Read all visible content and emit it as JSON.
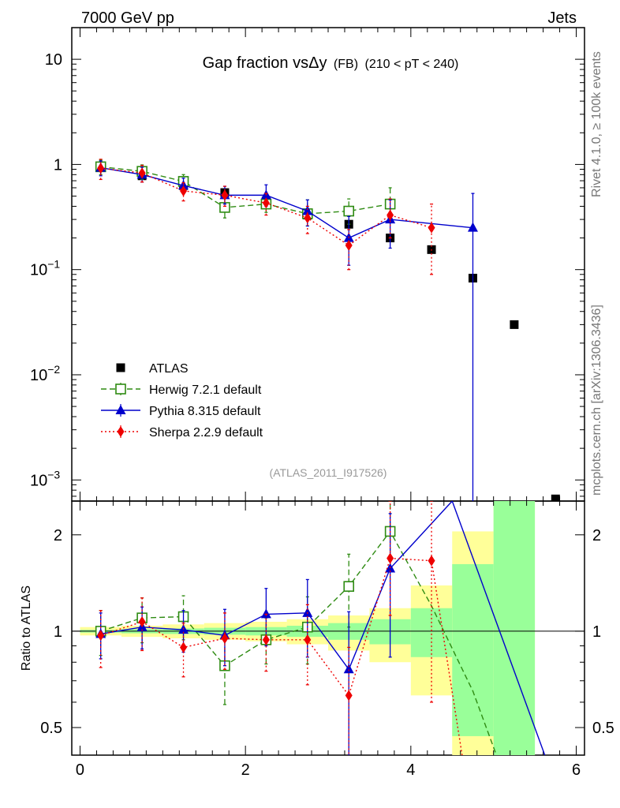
{
  "header": {
    "left": "7000 GeV pp",
    "right": "Jets"
  },
  "side_labels": {
    "top": "Rivet 4.1.0, ≥ 100k events",
    "bottom": "mcplots.cern.ch [arXiv:1306.3436]"
  },
  "chart_data": [
    {
      "type": "scatter",
      "panel": "main",
      "title_main": "Gap fraction vsΔy",
      "title_fb": "(FB)",
      "title_cut": "(210 < pT < 240)",
      "watermark": "(ATLAS_2011_I917526)",
      "yscale": "log",
      "xlim": [
        -0.1,
        6.1
      ],
      "ylim": [
        0.00063,
        20
      ],
      "yticks": [
        {
          "value": 10,
          "label": "10"
        },
        {
          "value": 1,
          "label": "1"
        },
        {
          "value": 0.1,
          "label": "10",
          "exp": "−1"
        },
        {
          "value": 0.01,
          "label": "10",
          "exp": "−2"
        },
        {
          "value": 0.001,
          "label": "10",
          "exp": "−3"
        }
      ],
      "series": [
        {
          "name": "ATLAS",
          "style": "data",
          "color": "#000000",
          "x": [
            0.25,
            0.75,
            1.25,
            1.75,
            2.25,
            2.75,
            3.25,
            3.75,
            4.25,
            4.75,
            5.25,
            5.75
          ],
          "y": [
            0.95,
            0.78,
            0.63,
            0.54,
            0.45,
            0.33,
            0.27,
            0.2,
            0.155,
            0.083,
            0.03,
            0.00066
          ]
        },
        {
          "name": "Herwig 7.2.1 default",
          "style": "herwig",
          "color": "#2e8b12",
          "x": [
            0.25,
            0.75,
            1.25,
            1.75,
            2.25,
            2.75,
            3.25,
            3.75
          ],
          "y": [
            0.95,
            0.86,
            0.69,
            0.39,
            0.42,
            0.34,
            0.36,
            0.42
          ],
          "ylo": [
            0.8,
            0.72,
            0.59,
            0.31,
            0.35,
            0.26,
            0.27,
            0.3
          ],
          "yhi": [
            1.1,
            0.99,
            0.8,
            0.5,
            0.52,
            0.46,
            0.47,
            0.6
          ]
        },
        {
          "name": "Pythia 8.315 default",
          "style": "pythia",
          "color": "#0000cc",
          "x": [
            0.25,
            0.75,
            1.25,
            1.75,
            2.25,
            2.75,
            3.25,
            3.75,
            4.75
          ],
          "y": [
            0.93,
            0.8,
            0.63,
            0.51,
            0.51,
            0.36,
            0.2,
            0.3,
            0.25
          ],
          "ylo": [
            0.78,
            0.68,
            0.54,
            0.42,
            0.4,
            0.26,
            0.11,
            0.16,
            0.0003
          ],
          "yhi": [
            1.08,
            0.94,
            0.74,
            0.62,
            0.64,
            0.46,
            0.32,
            0.46,
            0.53
          ]
        },
        {
          "name": "Sherpa 2.2.9 default",
          "style": "sherpa",
          "color": "#ee0000",
          "x": [
            0.25,
            0.75,
            1.25,
            1.75,
            2.25,
            2.75,
            3.25,
            3.75,
            4.25
          ],
          "y": [
            0.92,
            0.83,
            0.56,
            0.51,
            0.43,
            0.31,
            0.17,
            0.33,
            0.25
          ],
          "ylo": [
            0.72,
            0.68,
            0.45,
            0.4,
            0.33,
            0.22,
            0.1,
            0.2,
            0.09
          ],
          "yhi": [
            1.12,
            0.98,
            0.67,
            0.62,
            0.53,
            0.4,
            0.24,
            0.47,
            0.42
          ]
        }
      ]
    },
    {
      "type": "scatter",
      "panel": "ratio",
      "ylabel": "Ratio to ATLAS",
      "xlim": [
        -0.1,
        6.1
      ],
      "ylim": [
        0.41,
        2.55
      ],
      "xticks": [
        0,
        2,
        4,
        6
      ],
      "yticks_ratio": [
        0.5,
        1,
        2
      ],
      "bands": [
        {
          "x0": 0.0,
          "x1": 0.5,
          "yellow": [
            0.97,
            1.03
          ],
          "green": [
            0.99,
            1.01
          ]
        },
        {
          "x0": 0.5,
          "x1": 1.0,
          "yellow": [
            0.96,
            1.04
          ],
          "green": [
            0.985,
            1.015
          ]
        },
        {
          "x0": 1.0,
          "x1": 1.5,
          "yellow": [
            0.95,
            1.05
          ],
          "green": [
            0.98,
            1.02
          ]
        },
        {
          "x0": 1.5,
          "x1": 2.0,
          "yellow": [
            0.94,
            1.06
          ],
          "green": [
            0.975,
            1.025
          ]
        },
        {
          "x0": 2.0,
          "x1": 2.5,
          "yellow": [
            0.93,
            1.07
          ],
          "green": [
            0.97,
            1.03
          ]
        },
        {
          "x0": 2.5,
          "x1": 3.0,
          "yellow": [
            0.91,
            1.09
          ],
          "green": [
            0.96,
            1.04
          ]
        },
        {
          "x0": 3.0,
          "x1": 3.5,
          "yellow": [
            0.87,
            1.12
          ],
          "green": [
            0.94,
            1.06
          ]
        },
        {
          "x0": 3.5,
          "x1": 4.0,
          "yellow": [
            0.8,
            1.18
          ],
          "green": [
            0.91,
            1.09
          ]
        },
        {
          "x0": 4.0,
          "x1": 4.5,
          "yellow": [
            0.63,
            1.39
          ],
          "green": [
            0.83,
            1.18
          ]
        },
        {
          "x0": 4.5,
          "x1": 5.0,
          "yellow": [
            0.41,
            2.05
          ],
          "green": [
            0.47,
            1.62
          ]
        },
        {
          "x0": 5.0,
          "x1": 5.5,
          "yellow": [
            0.41,
            2.55
          ],
          "green": [
            0.41,
            2.55
          ]
        }
      ],
      "series": [
        {
          "name": "Herwig 7.2.1 default",
          "style": "herwig",
          "color": "#2e8b12",
          "x": [
            0.25,
            0.75,
            1.25,
            1.75,
            2.25,
            2.75,
            3.25,
            3.75,
            4.25,
            4.75,
            5.05
          ],
          "y": [
            1.0,
            1.1,
            1.11,
            0.78,
            0.94,
            1.03,
            1.38,
            2.05,
            1.2,
            0.65,
            0.4
          ],
          "ylo": [
            0.84,
            0.92,
            0.94,
            0.59,
            0.79,
            0.79,
            1.03,
            1.55,
            null,
            null,
            null
          ],
          "yhi": [
            1.16,
            1.27,
            1.29,
            0.96,
            1.1,
            1.28,
            1.74,
            2.55,
            null,
            null,
            null
          ]
        },
        {
          "name": "Pythia 8.315 default",
          "style": "pythia",
          "color": "#0000cc",
          "x": [
            0.25,
            0.75,
            1.25,
            1.75,
            2.25,
            2.75,
            3.25,
            3.75,
            4.5,
            5.62
          ],
          "y": [
            0.98,
            1.03,
            1.01,
            0.97,
            1.13,
            1.14,
            0.76,
            1.57,
            2.55,
            0.41
          ],
          "ylo": [
            0.82,
            0.88,
            0.86,
            0.78,
            0.9,
            0.83,
            0.38,
            0.83,
            null,
            null
          ],
          "yhi": [
            1.14,
            1.19,
            1.16,
            1.17,
            1.36,
            1.45,
            1.15,
            2.33,
            null,
            null
          ]
        },
        {
          "name": "Sherpa 2.2.9 default",
          "style": "sherpa",
          "color": "#ee0000",
          "x": [
            0.25,
            0.75,
            1.25,
            1.75,
            2.25,
            2.75,
            3.25,
            3.75,
            4.25,
            4.62
          ],
          "y": [
            0.97,
            1.07,
            0.89,
            0.95,
            0.94,
            0.94,
            0.63,
            1.69,
            1.66,
            0.41
          ],
          "ylo": [
            0.77,
            0.87,
            0.72,
            0.76,
            0.75,
            0.68,
            0.38,
            1.12,
            0.6,
            null
          ],
          "yhi": [
            1.16,
            1.27,
            1.06,
            1.14,
            1.13,
            1.21,
            0.89,
            2.55,
            2.55,
            null
          ]
        }
      ]
    }
  ]
}
